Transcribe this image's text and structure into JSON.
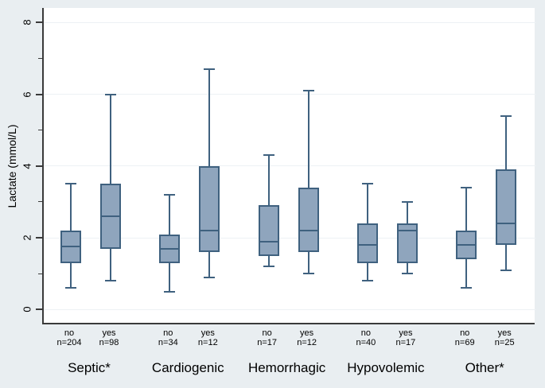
{
  "chart_data": {
    "type": "boxplot",
    "title": "",
    "xlabel": "",
    "ylabel": "Lactate (mmol/L)",
    "ylim": [
      0,
      8
    ],
    "yticks": [
      0,
      2,
      4,
      6,
      8
    ],
    "yticks_minor": [
      1,
      3,
      5,
      7
    ],
    "grid": "horizontal-on",
    "legend": "none",
    "groups": [
      {
        "label": "Septic*",
        "boxes": [
          {
            "label": "no",
            "n": "n=204",
            "whislo": 0.6,
            "q1": 1.3,
            "med": 1.75,
            "q3": 2.2,
            "whishi": 3.5
          },
          {
            "label": "yes",
            "n": "n=98",
            "whislo": 0.8,
            "q1": 1.7,
            "med": 2.6,
            "q3": 3.5,
            "whishi": 6.0
          }
        ]
      },
      {
        "label": "Cardiogenic",
        "boxes": [
          {
            "label": "no",
            "n": "n=34",
            "whislo": 0.5,
            "q1": 1.3,
            "med": 1.7,
            "q3": 2.1,
            "whishi": 3.2
          },
          {
            "label": "yes",
            "n": "n=12",
            "whislo": 0.9,
            "q1": 1.6,
            "med": 2.2,
            "q3": 4.0,
            "whishi": 6.7
          }
        ]
      },
      {
        "label": "Hemorrhagic",
        "boxes": [
          {
            "label": "no",
            "n": "n=17",
            "whislo": 1.2,
            "q1": 1.5,
            "med": 1.9,
            "q3": 2.9,
            "whishi": 4.3
          },
          {
            "label": "yes",
            "n": "n=12",
            "whislo": 1.0,
            "q1": 1.6,
            "med": 2.2,
            "q3": 3.4,
            "whishi": 6.1
          }
        ]
      },
      {
        "label": "Hypovolemic",
        "boxes": [
          {
            "label": "no",
            "n": "n=40",
            "whislo": 0.8,
            "q1": 1.3,
            "med": 1.8,
            "q3": 2.4,
            "whishi": 3.5
          },
          {
            "label": "yes",
            "n": "n=17",
            "whislo": 1.0,
            "q1": 1.3,
            "med": 2.2,
            "q3": 2.4,
            "whishi": 3.0
          }
        ]
      },
      {
        "label": "Other*",
        "boxes": [
          {
            "label": "no",
            "n": "n=69",
            "whislo": 0.6,
            "q1": 1.4,
            "med": 1.8,
            "q3": 2.2,
            "whishi": 3.4
          },
          {
            "label": "yes",
            "n": "n=25",
            "whislo": 1.1,
            "q1": 1.8,
            "med": 2.4,
            "q3": 3.9,
            "whishi": 5.4
          }
        ]
      }
    ],
    "colors": {
      "background": "#e9eef1",
      "plot_background": "#ffffff",
      "gridline": "#edf1f4",
      "axis": "#3a3a3a",
      "box_fill": "#8fa5bd",
      "box_border": "#3f617f",
      "text": "#000000"
    }
  }
}
